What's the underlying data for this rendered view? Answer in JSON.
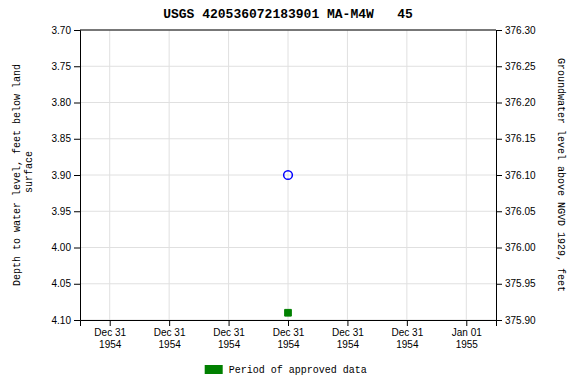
{
  "chart_data": {
    "type": "scatter",
    "title": "USGS 420536072183901 MA-M4W   45",
    "ylabel": "Depth to water level, feet below land\n surface",
    "y2label": "Groundwater level above NGVD 1929, feet",
    "categories": [
      "Dec 31\n1954",
      "Dec 31\n1954",
      "Dec 31\n1954",
      "Dec 31\n1954",
      "Dec 31\n1954",
      "Dec 31\n1954",
      "Jan 01\n1955"
    ],
    "series": [
      {
        "color": "blue",
        "marker": "circle-open",
        "values": [
          null,
          null,
          null,
          3.9,
          null,
          null,
          null
        ]
      },
      {
        "name": "Period of approved data",
        "color": "#008000",
        "marker": "square",
        "values": [
          null,
          null,
          null,
          4.09,
          null,
          null,
          null
        ]
      }
    ],
    "ylim": [
      4.1,
      3.7
    ],
    "yticks": [
      {
        "value": 3.7,
        "label": "3.70"
      },
      3.75,
      {
        "value": 3.8,
        "label": "3.80"
      },
      3.85,
      {
        "value": 3.9,
        "label": "3.90"
      },
      3.95,
      {
        "value": 4.0,
        "label": "4.00"
      },
      4.05,
      {
        "value": 4.1,
        "label": "4.10"
      }
    ],
    "y2lim": [
      375.9,
      376.3
    ],
    "y2ticks": [
      {
        "value": 376.3,
        "label": "376.30"
      },
      376.25,
      {
        "value": 376.2,
        "label": "376.20"
      },
      376.15,
      {
        "value": 376.1,
        "label": "376.10"
      },
      376.05,
      {
        "value": 376.0,
        "label": "376.00"
      },
      375.95,
      {
        "value": 375.9,
        "label": "375.90"
      }
    ],
    "grid": true,
    "legend": "bottom"
  }
}
